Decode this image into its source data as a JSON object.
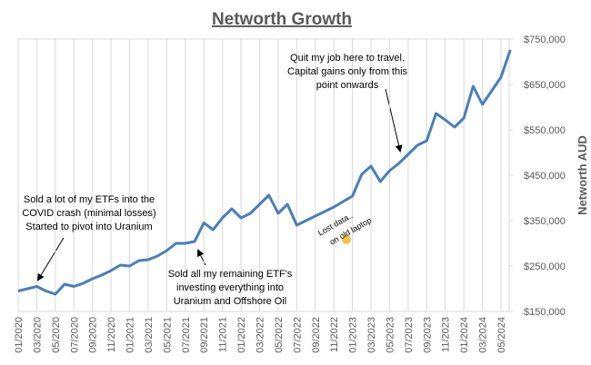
{
  "chart_data": {
    "type": "line",
    "title": "Networth Growth",
    "y_label": "Networth AUD",
    "categories": [
      "01/2020",
      null,
      "03/2020",
      null,
      "05/2020",
      null,
      "07/2020",
      null,
      "09/2020",
      null,
      "11/2020",
      null,
      "01/2021",
      null,
      "03/2021",
      null,
      "05/2021",
      null,
      "07/2021",
      null,
      "09/2021",
      null,
      "11/2021",
      null,
      "01/2022",
      null,
      "03/2022",
      null,
      "05/2022",
      null,
      "07/2022",
      null,
      "09/2022",
      null,
      "11/2022",
      null,
      "01/2023",
      null,
      "03/2023",
      null,
      "05/2023",
      null,
      "07/2023",
      null,
      "09/2023",
      null,
      "11/2023",
      null,
      "01/2024",
      null,
      "03/2024",
      null,
      "05/2024",
      null
    ],
    "series": [
      {
        "name": "Networth",
        "color": "#4a7ebb",
        "values": [
          195000,
          200000,
          205000,
          195000,
          188000,
          210000,
          205000,
          212000,
          222000,
          230000,
          240000,
          252000,
          250000,
          262000,
          264000,
          272000,
          284000,
          300000,
          300000,
          304000,
          345000,
          330000,
          356000,
          376000,
          356000,
          366000,
          386000,
          406000,
          366000,
          386000,
          340000,
          350000,
          360000,
          370000,
          380000,
          392000,
          404000,
          452000,
          470000,
          436000,
          460000,
          476000,
          496000,
          516000,
          526000,
          586000,
          572000,
          556000,
          576000,
          646000,
          606000,
          636000,
          666000,
          726000
        ]
      }
    ],
    "ylim": [
      150000,
      750000
    ],
    "yticks": [
      {
        "value": 150000,
        "label": "$150,000"
      },
      {
        "value": 250000,
        "label": "$250,000"
      },
      {
        "value": 350000,
        "label": "$350,000"
      },
      {
        "value": 450000,
        "label": "$450,000"
      },
      {
        "value": 550000,
        "label": "$550,000"
      },
      {
        "value": 650000,
        "label": "$650,000"
      },
      {
        "value": 750000,
        "label": "$750,000"
      }
    ],
    "grid": true,
    "annotations": [
      {
        "lines": [
          "Sold a lot of my ETFs into the",
          "COVID crash (minimal losses)",
          "Started to pivot into Uranium"
        ]
      },
      {
        "lines": [
          "Sold all my remaining ETF's",
          "investing everything into",
          "Uranium and Offshore Oil"
        ]
      },
      {
        "lines": [
          "Lost data..",
          "on old laptop"
        ]
      },
      {
        "lines": [
          "Quit my job here to travel.",
          "Capital gains only from this",
          "point onwards"
        ]
      }
    ]
  }
}
